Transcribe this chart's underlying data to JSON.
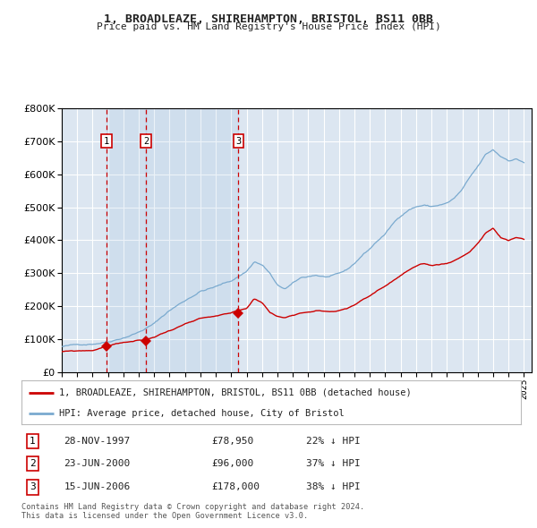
{
  "title": "1, BROADLEAZE, SHIREHAMPTON, BRISTOL, BS11 0BB",
  "subtitle": "Price paid vs. HM Land Registry's House Price Index (HPI)",
  "legend_line1": "1, BROADLEAZE, SHIREHAMPTON, BRISTOL, BS11 0BB (detached house)",
  "legend_line2": "HPI: Average price, detached house, City of Bristol",
  "transactions": [
    {
      "num": 1,
      "date": "28-NOV-1997",
      "price": 78950,
      "pct": "22%",
      "dir": "↓"
    },
    {
      "num": 2,
      "date": "23-JUN-2000",
      "price": 96000,
      "pct": "37%",
      "dir": "↓"
    },
    {
      "num": 3,
      "date": "15-JUN-2006",
      "price": 178000,
      "pct": "38%",
      "dir": "↓"
    }
  ],
  "transaction_dates_decimal": [
    1997.91,
    2000.47,
    2006.46
  ],
  "transaction_prices": [
    78950,
    96000,
    178000
  ],
  "red_line_color": "#cc0000",
  "blue_line_color": "#7aaacf",
  "plot_bg_color": "#dce6f1",
  "grid_color": "#ffffff",
  "footer": "Contains HM Land Registry data © Crown copyright and database right 2024.\nThis data is licensed under the Open Government Licence v3.0.",
  "ylim": [
    0,
    800000
  ],
  "yticks": [
    0,
    100000,
    200000,
    300000,
    400000,
    500000,
    600000,
    700000,
    800000
  ],
  "xlim_start": 1995.0,
  "xlim_end": 2025.5,
  "hpi_keypoints": [
    [
      1995.0,
      78000
    ],
    [
      1996.0,
      82000
    ],
    [
      1997.0,
      88000
    ],
    [
      1998.0,
      97000
    ],
    [
      1999.0,
      112000
    ],
    [
      2000.0,
      130000
    ],
    [
      2001.0,
      155000
    ],
    [
      2002.0,
      195000
    ],
    [
      2003.0,
      225000
    ],
    [
      2004.0,
      255000
    ],
    [
      2005.0,
      268000
    ],
    [
      2006.0,
      285000
    ],
    [
      2007.0,
      315000
    ],
    [
      2007.5,
      345000
    ],
    [
      2008.0,
      335000
    ],
    [
      2008.5,
      310000
    ],
    [
      2009.0,
      270000
    ],
    [
      2009.5,
      260000
    ],
    [
      2010.0,
      275000
    ],
    [
      2010.5,
      290000
    ],
    [
      2011.0,
      295000
    ],
    [
      2011.5,
      300000
    ],
    [
      2012.0,
      295000
    ],
    [
      2012.5,
      295000
    ],
    [
      2013.0,
      300000
    ],
    [
      2013.5,
      310000
    ],
    [
      2014.0,
      330000
    ],
    [
      2014.5,
      355000
    ],
    [
      2015.0,
      375000
    ],
    [
      2015.5,
      400000
    ],
    [
      2016.0,
      420000
    ],
    [
      2016.5,
      450000
    ],
    [
      2017.0,
      475000
    ],
    [
      2017.5,
      495000
    ],
    [
      2018.0,
      505000
    ],
    [
      2018.5,
      510000
    ],
    [
      2019.0,
      505000
    ],
    [
      2019.5,
      510000
    ],
    [
      2020.0,
      515000
    ],
    [
      2020.5,
      530000
    ],
    [
      2021.0,
      555000
    ],
    [
      2021.5,
      590000
    ],
    [
      2022.0,
      620000
    ],
    [
      2022.5,
      655000
    ],
    [
      2023.0,
      670000
    ],
    [
      2023.5,
      650000
    ],
    [
      2024.0,
      640000
    ],
    [
      2024.5,
      645000
    ],
    [
      2025.0,
      635000
    ]
  ],
  "red_keypoints": [
    [
      1995.0,
      62000
    ],
    [
      1996.0,
      63000
    ],
    [
      1997.0,
      65000
    ],
    [
      1997.91,
      78950
    ],
    [
      1998.5,
      85000
    ],
    [
      1999.0,
      90000
    ],
    [
      2000.0,
      95000
    ],
    [
      2000.47,
      96000
    ],
    [
      2001.0,
      105000
    ],
    [
      2002.0,
      125000
    ],
    [
      2003.0,
      145000
    ],
    [
      2004.0,
      158000
    ],
    [
      2005.0,
      163000
    ],
    [
      2006.0,
      170000
    ],
    [
      2006.46,
      178000
    ],
    [
      2007.0,
      185000
    ],
    [
      2007.5,
      215000
    ],
    [
      2008.0,
      205000
    ],
    [
      2008.5,
      175000
    ],
    [
      2009.0,
      162000
    ],
    [
      2009.5,
      158000
    ],
    [
      2010.0,
      168000
    ],
    [
      2010.5,
      175000
    ],
    [
      2011.0,
      180000
    ],
    [
      2011.5,
      185000
    ],
    [
      2012.0,
      183000
    ],
    [
      2012.5,
      182000
    ],
    [
      2013.0,
      185000
    ],
    [
      2013.5,
      190000
    ],
    [
      2014.0,
      200000
    ],
    [
      2014.5,
      215000
    ],
    [
      2015.0,
      228000
    ],
    [
      2015.5,
      245000
    ],
    [
      2016.0,
      258000
    ],
    [
      2016.5,
      275000
    ],
    [
      2017.0,
      290000
    ],
    [
      2017.5,
      305000
    ],
    [
      2018.0,
      315000
    ],
    [
      2018.5,
      320000
    ],
    [
      2019.0,
      315000
    ],
    [
      2019.5,
      318000
    ],
    [
      2020.0,
      322000
    ],
    [
      2020.5,
      332000
    ],
    [
      2021.0,
      345000
    ],
    [
      2021.5,
      360000
    ],
    [
      2022.0,
      385000
    ],
    [
      2022.5,
      415000
    ],
    [
      2023.0,
      430000
    ],
    [
      2023.5,
      400000
    ],
    [
      2024.0,
      390000
    ],
    [
      2024.5,
      400000
    ],
    [
      2025.0,
      395000
    ]
  ]
}
